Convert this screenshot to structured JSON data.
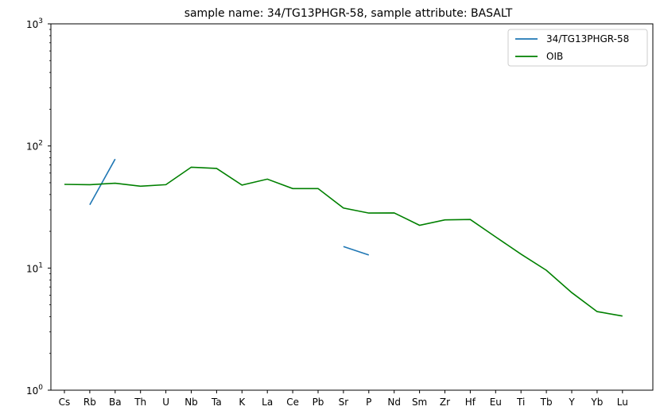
{
  "chart_data": {
    "type": "line",
    "title": "sample name: 34/TG13PHGR-58, sample attribute: BASALT",
    "xlabel": "",
    "ylabel": "",
    "yscale": "log",
    "ylim": [
      1,
      1000
    ],
    "y_ticks": [
      {
        "value": 1,
        "base": "10",
        "exp": "0"
      },
      {
        "value": 10,
        "base": "10",
        "exp": "1"
      },
      {
        "value": 100,
        "base": "10",
        "exp": "2"
      },
      {
        "value": 1000,
        "base": "10",
        "exp": "3"
      }
    ],
    "categories": [
      "Cs",
      "Rb",
      "Ba",
      "Th",
      "U",
      "Nb",
      "Ta",
      "K",
      "La",
      "Ce",
      "Pb",
      "Sr",
      "P",
      "Nd",
      "Sm",
      "Zr",
      "Hf",
      "Eu",
      "Ti",
      "Tb",
      "Y",
      "Yb",
      "Lu"
    ],
    "grid": false,
    "legend_position": "top-right",
    "series": [
      {
        "name": "34/TG13PHGR-58",
        "color": "#1f77b4",
        "values": [
          null,
          33,
          78,
          null,
          null,
          null,
          null,
          null,
          null,
          null,
          null,
          15,
          12.8,
          null,
          null,
          null,
          null,
          null,
          null,
          null,
          null,
          null,
          null
        ]
      },
      {
        "name": "OIB",
        "color": "#008000",
        "values": [
          48.5,
          48.2,
          49.5,
          46.8,
          48.2,
          67,
          65.5,
          47.8,
          53.5,
          44.8,
          44.8,
          31,
          28.2,
          28.3,
          22.4,
          24.8,
          25,
          18,
          13,
          9.6,
          6.3,
          4.4,
          4.05
        ]
      }
    ]
  }
}
